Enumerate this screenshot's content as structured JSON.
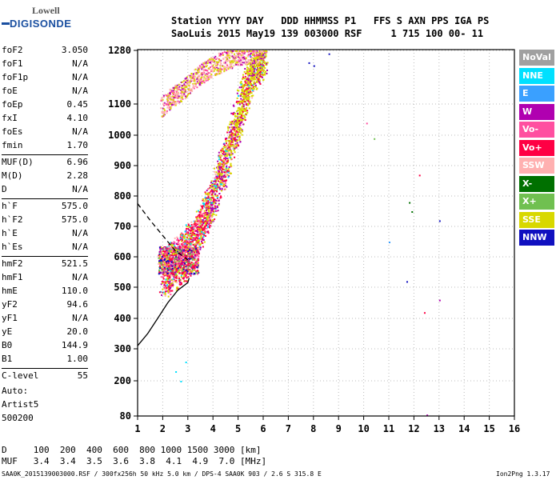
{
  "logo": {
    "line1": "Lowell",
    "line2": "DIGISONDE"
  },
  "header": {
    "line1": "Station YYYY DAY   DDD HHMMSS P1   FFS S AXN PPS IGA PS",
    "line2": "SaoLuis 2015 May19 139 003000 RSF     1 715 100 00- 11"
  },
  "params": [
    [
      [
        "foF2",
        "3.050"
      ],
      [
        "foF1",
        "N/A"
      ],
      [
        "foF1p",
        "N/A"
      ],
      [
        "foE",
        "N/A"
      ],
      [
        "foEp",
        "0.45"
      ],
      [
        "fxI",
        "4.10"
      ],
      [
        "foEs",
        "N/A"
      ],
      [
        "fmin",
        "1.70"
      ]
    ],
    [
      [
        "MUF(D)",
        "6.96"
      ],
      [
        "M(D)",
        "2.28"
      ],
      [
        "D",
        "N/A"
      ]
    ],
    [
      [
        "h`F",
        "575.0"
      ],
      [
        "h`F2",
        "575.0"
      ],
      [
        "h`E",
        "N/A"
      ],
      [
        "h`Es",
        "N/A"
      ]
    ],
    [
      [
        "hmF2",
        "521.5"
      ],
      [
        "hmF1",
        "N/A"
      ],
      [
        "hmE",
        "110.0"
      ],
      [
        "yF2",
        "94.6"
      ],
      [
        "yF1",
        "N/A"
      ],
      [
        "yE",
        "20.0"
      ],
      [
        "B0",
        "144.9"
      ],
      [
        "B1",
        "1.00"
      ]
    ],
    [
      [
        "C-level",
        "55"
      ]
    ]
  ],
  "auto": {
    "line1": "Auto:",
    "line2": "Artist5",
    "line3": "500200"
  },
  "legend": [
    {
      "label": "NoVal",
      "color": "#a0a0a0"
    },
    {
      "label": "NNE",
      "color": "#00e0ff"
    },
    {
      "label": "E",
      "color": "#3aa0ff"
    },
    {
      "label": "W",
      "color": "#b000b0"
    },
    {
      "label": "Vo-",
      "color": "#ff4fa0"
    },
    {
      "label": "Vo+",
      "color": "#ff0044"
    },
    {
      "label": "SSW",
      "color": "#ffb0b0"
    },
    {
      "label": "X-",
      "color": "#007000"
    },
    {
      "label": "X+",
      "color": "#70c050"
    },
    {
      "label": "SSE",
      "color": "#d8d800"
    },
    {
      "label": "NNW",
      "color": "#1010c0"
    }
  ],
  "distance_table": {
    "line1": "D     100  200  400  600  800 1000 1500 3000 [km]",
    "line2": "MUF   3.4  3.4  3.5  3.6  3.8  4.1  4.9  7.0 [MHz]"
  },
  "footer": {
    "left": "SAA0K_2015139003000.RSF / 300fx256h 50 kHz 5.0 km / DPS-4 SAA0K 903 / 2.6 S 315.8 E",
    "right": "Ion2Png 1.3.17"
  },
  "chart_data": {
    "type": "scatter",
    "x_ticks": [
      "1",
      "2",
      "3",
      "4",
      "5",
      "6",
      "7",
      "8",
      "9",
      "10",
      "11",
      "12",
      "13",
      "14",
      "15",
      "16"
    ],
    "y_ticks": [
      "80",
      "200",
      "300",
      "400",
      "500",
      "600",
      "700",
      "800",
      "900",
      "1000",
      "1100",
      "1280"
    ],
    "xlim": [
      1,
      16
    ],
    "ylim": [
      80,
      1280
    ],
    "y_scale": "nonlinear (virtual height axis)",
    "grid": true,
    "trace": [
      {
        "x": 2.0,
        "y": 550
      },
      {
        "x": 2.2,
        "y": 560
      },
      {
        "x": 2.4,
        "y": 575
      },
      {
        "x": 2.6,
        "y": 590
      },
      {
        "x": 2.8,
        "y": 600
      },
      {
        "x": 3.0,
        "y": 620
      },
      {
        "x": 3.2,
        "y": 650
      },
      {
        "x": 3.4,
        "y": 685
      },
      {
        "x": 3.6,
        "y": 720
      },
      {
        "x": 3.8,
        "y": 760
      },
      {
        "x": 4.0,
        "y": 800
      },
      {
        "x": 4.2,
        "y": 850
      },
      {
        "x": 4.4,
        "y": 900
      },
      {
        "x": 4.6,
        "y": 950
      },
      {
        "x": 4.8,
        "y": 1000
      },
      {
        "x": 5.0,
        "y": 1060
      },
      {
        "x": 5.2,
        "y": 1120
      },
      {
        "x": 5.5,
        "y": 1200
      },
      {
        "x": 6.0,
        "y": 1260
      }
    ],
    "o_trace_upper": [
      {
        "x": 1.9,
        "y": 1090
      },
      {
        "x": 2.3,
        "y": 1120
      },
      {
        "x": 2.8,
        "y": 1150
      },
      {
        "x": 3.3,
        "y": 1190
      },
      {
        "x": 4.0,
        "y": 1230
      },
      {
        "x": 4.8,
        "y": 1260
      },
      {
        "x": 6.0,
        "y": 1280
      }
    ],
    "profile_curve": [
      {
        "x": 1.0,
        "y": 310
      },
      {
        "x": 1.4,
        "y": 350
      },
      {
        "x": 1.8,
        "y": 400
      },
      {
        "x": 2.2,
        "y": 450
      },
      {
        "x": 2.6,
        "y": 490
      },
      {
        "x": 3.0,
        "y": 515
      },
      {
        "x": 3.05,
        "y": 530
      }
    ],
    "dashed_curve": [
      {
        "x": 1.0,
        "y": 775
      },
      {
        "x": 1.5,
        "y": 720
      },
      {
        "x": 2.0,
        "y": 670
      },
      {
        "x": 2.5,
        "y": 620
      },
      {
        "x": 3.0,
        "y": 590
      }
    ],
    "scattered_points": [
      {
        "x": 2.5,
        "y": 230,
        "c": "NNE"
      },
      {
        "x": 2.7,
        "y": 200,
        "c": "NNE"
      },
      {
        "x": 2.9,
        "y": 260,
        "c": "NNE"
      },
      {
        "x": 7.8,
        "y": 1240,
        "c": "NNW"
      },
      {
        "x": 8.0,
        "y": 1230,
        "c": "NNW"
      },
      {
        "x": 8.6,
        "y": 1270,
        "c": "NNW"
      },
      {
        "x": 10.1,
        "y": 1040,
        "c": "Vo-"
      },
      {
        "x": 10.4,
        "y": 990,
        "c": "X+"
      },
      {
        "x": 11.0,
        "y": 650,
        "c": "E"
      },
      {
        "x": 11.8,
        "y": 780,
        "c": "X-"
      },
      {
        "x": 11.9,
        "y": 750,
        "c": "X-"
      },
      {
        "x": 11.7,
        "y": 520,
        "c": "NNW"
      },
      {
        "x": 12.2,
        "y": 870,
        "c": "Vo+"
      },
      {
        "x": 12.4,
        "y": 420,
        "c": "Vo+"
      },
      {
        "x": 13.0,
        "y": 460,
        "c": "W"
      },
      {
        "x": 13.0,
        "y": 720,
        "c": "NNW"
      },
      {
        "x": 12.5,
        "y": 85,
        "c": "W"
      }
    ]
  }
}
